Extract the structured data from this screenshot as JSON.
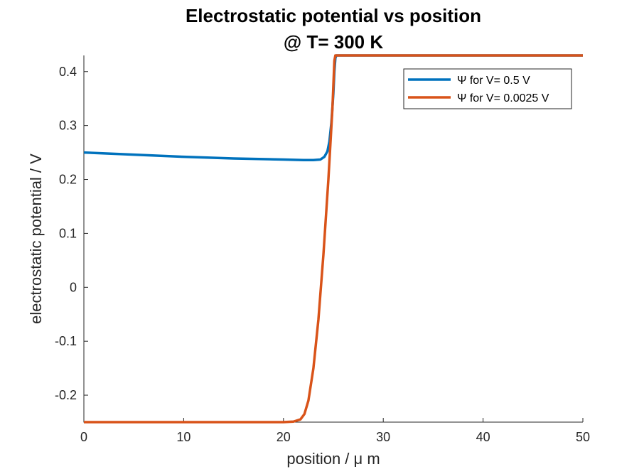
{
  "chart_data": {
    "type": "line",
    "title": [
      "Electrostatic potential vs position",
      "@ T= 300 K"
    ],
    "xlabel": "position / μ m",
    "ylabel": "electrostatic potential / V",
    "xlim": [
      0,
      50
    ],
    "ylim": [
      -0.25,
      0.43
    ],
    "xticks": [
      0,
      10,
      20,
      30,
      40,
      50
    ],
    "xtick_labels": [
      "0",
      "10",
      "20",
      "30",
      "40",
      "50"
    ],
    "yticks": [
      -0.2,
      -0.1,
      0,
      0.1,
      0.2,
      0.3,
      0.4
    ],
    "ytick_labels": [
      "-0.2",
      "-0.1",
      "0",
      "0.1",
      "0.2",
      "0.3",
      "0.4"
    ],
    "grid": false,
    "legend_position": "top-right",
    "series": [
      {
        "name": "Ψ for V= 0.5 V",
        "color": "#0072BD",
        "x": [
          0,
          5,
          10,
          15,
          20,
          22,
          23,
          23.7,
          24.1,
          24.4,
          24.6,
          24.8,
          25.0,
          25.1,
          25.2,
          25.3,
          26,
          30,
          40,
          50
        ],
        "y": [
          0.25,
          0.246,
          0.242,
          0.239,
          0.237,
          0.236,
          0.236,
          0.237,
          0.242,
          0.252,
          0.27,
          0.305,
          0.36,
          0.4,
          0.425,
          0.43,
          0.43,
          0.43,
          0.43,
          0.43
        ]
      },
      {
        "name": "Ψ for V= 0.0025 V",
        "color": "#D95319",
        "x": [
          0,
          10,
          20,
          21.0,
          21.7,
          22.1,
          22.5,
          23.0,
          23.5,
          24.0,
          24.5,
          24.9,
          25.1,
          25.2,
          26,
          30,
          40,
          50
        ],
        "y": [
          -0.25,
          -0.25,
          -0.25,
          -0.249,
          -0.245,
          -0.235,
          -0.21,
          -0.15,
          -0.06,
          0.06,
          0.2,
          0.33,
          0.42,
          0.43,
          0.43,
          0.43,
          0.43,
          0.43
        ]
      }
    ]
  }
}
